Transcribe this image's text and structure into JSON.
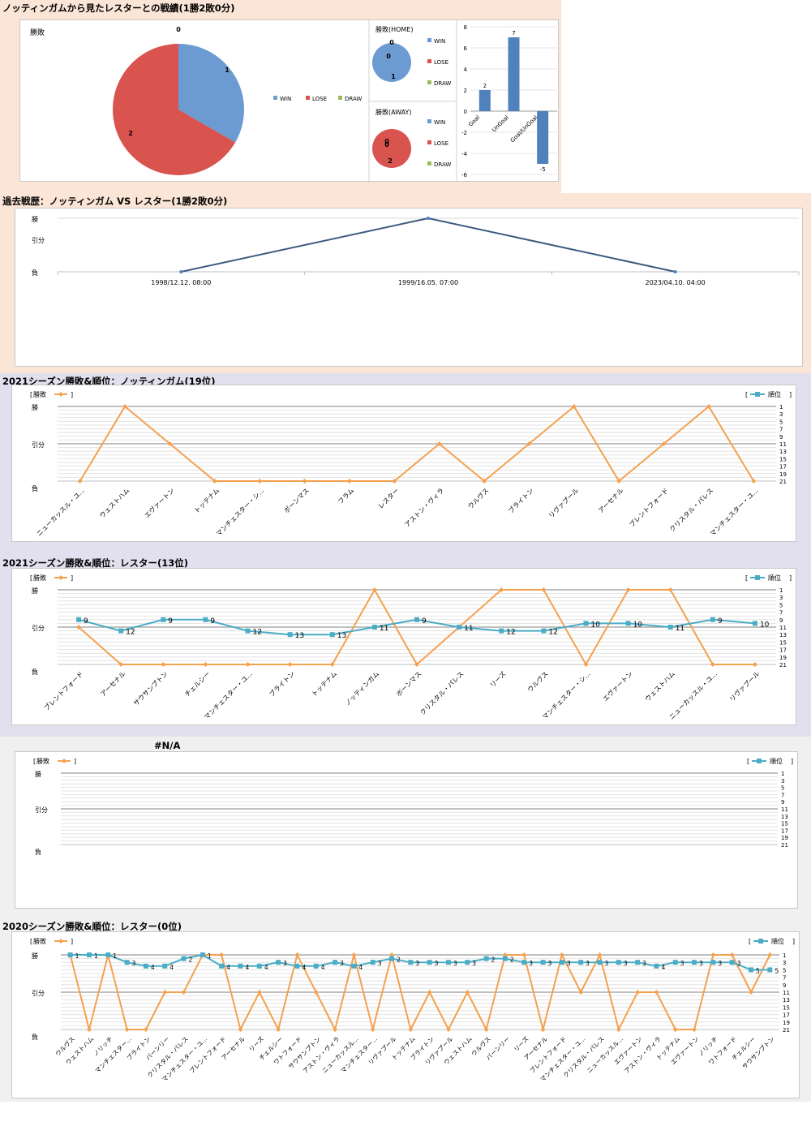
{
  "summary": {
    "title": "ノッティンガムから見たレスターとの戦績(1勝2敗0分)",
    "pie_main": {
      "label": "勝敗",
      "values": {
        "WIN": 1,
        "LOSE": 2,
        "DRAW": 0
      }
    },
    "pie_home": {
      "label": "勝敗(HOME)",
      "values": {
        "WIN": 1,
        "LOSE": 0,
        "DRAW": 0
      }
    },
    "pie_away": {
      "label": "勝敗(AWAY)",
      "values": {
        "WIN": 0,
        "LOSE": 2,
        "DRAW": 0
      }
    },
    "legend": [
      "WIN",
      "LOSE",
      "DRAW"
    ],
    "goals": {
      "categories": [
        "Goal",
        "UnGoal",
        "Goal/UnGoal"
      ],
      "values": [
        2,
        7,
        -5
      ],
      "ylim": [
        -6,
        8
      ],
      "ticks": [
        8,
        6,
        4,
        2,
        0,
        -2,
        -4,
        -6
      ]
    }
  },
  "history": {
    "title": "過去戦歴：ノッティンガム VS レスター(1勝2敗0分)",
    "y_labels": [
      "勝",
      "引分",
      "負"
    ],
    "points": [
      {
        "date": "1998/12.12. 08:00",
        "result": "負"
      },
      {
        "date": "1999/16.05. 07:00",
        "result": "勝"
      },
      {
        "date": "2023/04.10. 04:00",
        "result": "負"
      }
    ]
  },
  "legend_labels": {
    "left": "勝敗",
    "right": "順位"
  },
  "y_result_labels": [
    "勝",
    "引分",
    "負"
  ],
  "rank_ticks": [
    1,
    3,
    5,
    7,
    9,
    11,
    13,
    15,
    17,
    19,
    21
  ],
  "season_notts": {
    "title": "2021シーズン勝敗&順位：ノッティンガム(19位)",
    "teams": [
      "ニューカッスル・ユ...",
      "ウェストハム",
      "エヴァートン",
      "トッテナム",
      "マンチェスター・シ...",
      "ボーンマス",
      "フラム",
      "レスター",
      "アストン・ヴィラ",
      "ウルヴス",
      "ブライトン",
      "リヴァプール",
      "アーセナル",
      "ブレントフォード",
      "クリスタル・パレス",
      "マンチェスター・ユ..."
    ],
    "results": [
      "負",
      "勝",
      "引分",
      "負",
      "負",
      "負",
      "負",
      "負",
      "引分",
      "負",
      "引分",
      "勝",
      "負",
      "引分",
      "勝",
      "負"
    ],
    "ranks": []
  },
  "season_leicester": {
    "title": "2021シーズン勝敗&順位：レスター(13位)",
    "teams": [
      "ブレントフォード",
      "アーセナル",
      "サウサンプトン",
      "チェルシー",
      "マンチェスター・ユ...",
      "ブライトン",
      "トッテナム",
      "ノッティンガム",
      "ボーンマス",
      "クリスタル・パレス",
      "リーズ",
      "ウルヴス",
      "マンチェスター・シ...",
      "エヴァートン",
      "ウェストハム",
      "ニューカッスル・ユ...",
      "リヴァプール"
    ],
    "results": [
      "引分",
      "負",
      "負",
      "負",
      "負",
      "負",
      "負",
      "勝",
      "負",
      "引分",
      "勝",
      "勝",
      "負",
      "勝",
      "勝",
      "負",
      "負"
    ],
    "ranks": [
      9,
      12,
      9,
      9,
      12,
      13,
      13,
      11,
      9,
      11,
      12,
      12,
      10,
      10,
      11,
      9,
      10
    ]
  },
  "season_na": {
    "title": "#N/A",
    "teams": [],
    "results": [],
    "ranks": []
  },
  "season_2020": {
    "title": "2020シーズン勝敗&順位：レスター(0位)",
    "teams": [
      "ウルヴス",
      "ウェストハム",
      "ノリッチ",
      "マンチェスター...",
      "ブライトン",
      "バーンリー",
      "クリスタル・パレス",
      "マンチェスター・ユ...",
      "ブレントフォード",
      "アーセナル",
      "リーズ",
      "チェルシー",
      "ワトフォード",
      "サウサンプトン",
      "アストン・ヴィラ",
      "ニューカッスル...",
      "マンチェスター...",
      "リヴァプール",
      "トッテナム",
      "ブライトン",
      "リヴァプール",
      "ウェストハム",
      "ウルヴス",
      "バーンリー",
      "リーズ",
      "アーセナル",
      "ブレントフォード",
      "マンチェスター・ユ...",
      "クリスタル・パレス",
      "ニューカッスル...",
      "エヴァートン",
      "アストン・ヴィラ",
      "トッテナム",
      "エヴァートン",
      "ノリッチ",
      "ワトフォード",
      "チェルシー",
      "サウサンプトン"
    ],
    "results": [
      "勝",
      "負",
      "勝",
      "負",
      "負",
      "引分",
      "引分",
      "勝",
      "勝",
      "負",
      "引分",
      "負",
      "勝",
      "引分",
      "負",
      "勝",
      "負",
      "勝",
      "負",
      "引分",
      "負",
      "引分",
      "負",
      "勝",
      "勝",
      "負",
      "勝",
      "引分",
      "勝",
      "負",
      "引分",
      "引分",
      "負",
      "負",
      "勝",
      "勝",
      "引分",
      "勝"
    ],
    "ranks": [
      1,
      1,
      1,
      3,
      4,
      4,
      2,
      1,
      4,
      4,
      4,
      3,
      4,
      4,
      3,
      4,
      3,
      2,
      3,
      3,
      3,
      3,
      2,
      2,
      3,
      3,
      3,
      3,
      3,
      3,
      3,
      4,
      3,
      3,
      3,
      3,
      5,
      5
    ]
  },
  "colors": {
    "win": "#6b9bd1",
    "lose": "#d9534f",
    "draw": "#9bbb59",
    "result_line": "#f4a14f",
    "rank_line": "#4bacc6",
    "history_line": "#3d5a80",
    "pink_bg": "#fce8d8",
    "purple_bg": "#e1dfee",
    "gray_bg": "#f0f0f0"
  }
}
